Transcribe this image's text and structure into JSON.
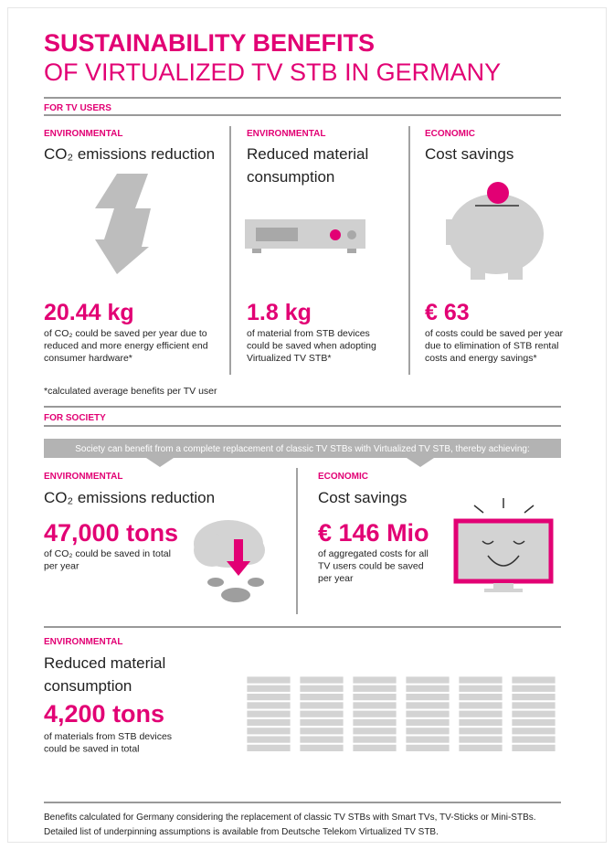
{
  "header": {
    "title": "SUSTAINABILITY BENEFITS",
    "subtitle": "OF VIRTUALIZED TV STB IN GERMANY"
  },
  "tv_users": {
    "label": "FOR TV USERS",
    "columns": [
      {
        "category": "ENVIRONMENTAL",
        "heading": [
          "CO₂ emissions reduction"
        ],
        "value": "20.44 kg",
        "description": [
          "of CO₂ could be saved per year due to",
          "reduced and more energy efficient end",
          "consumer hardware*"
        ]
      },
      {
        "category": "ENVIRONMENTAL",
        "heading": [
          "Reduced material",
          "consumption"
        ],
        "value": "1.8 kg",
        "description": [
          "of material from STB devices",
          "could be saved when adopting",
          "Virtualized TV STB*"
        ]
      },
      {
        "category": "ECONOMIC",
        "heading": [
          "Cost savings"
        ],
        "value": "€ 63",
        "description": [
          "of costs could be saved per year",
          "due to elimination of STB rental",
          "costs and energy savings*"
        ]
      }
    ],
    "note": "*calculated average benefits per TV user"
  },
  "society": {
    "label": "FOR SOCIETY",
    "banner": "Society can benefit from a complete replacement of classic TV STBs with Virtualized TV STB, thereby achieving:",
    "blocks": [
      {
        "category": "ENVIRONMENTAL",
        "heading": [
          "CO₂ emissions reduction"
        ],
        "value": "47,000 tons",
        "description": [
          "of CO₂ could be saved in total",
          "per year"
        ]
      },
      {
        "category": "ECONOMIC",
        "heading": [
          "Cost savings"
        ],
        "value": "€ 146 Mio",
        "description": [
          "of aggregated costs  for all",
          "TV  users could be saved",
          "per year"
        ]
      },
      {
        "category": "ENVIRONMENTAL",
        "heading": [
          "Reduced material",
          "consumption"
        ],
        "value": "4,200 tons",
        "description": [
          "of materials from STB devices",
          "could be saved in total"
        ]
      }
    ]
  },
  "footer": [
    "Benefits calculated for Germany considering the replacement of classic TV STBs with Smart TVs, TV-Sticks or Mini-STBs.",
    "Detailed list of underpinning assumptions is available from Deutsche Telekom Virtualized TV STB."
  ]
}
